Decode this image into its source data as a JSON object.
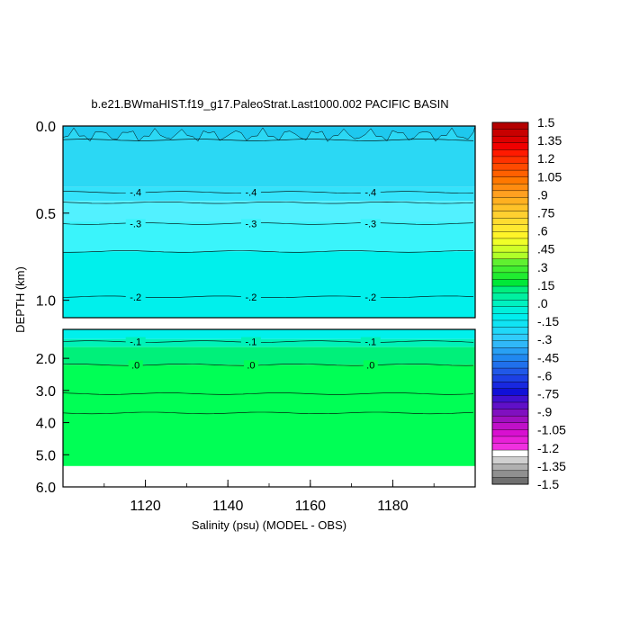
{
  "chart_data": {
    "type": "heatmap",
    "title": "b.e21.BWmaHIST.f19_g17.PaleoStrat.Last1000.002 PACIFIC BASIN",
    "xlabel": "Salinity (psu) (MODEL - OBS)",
    "ylabel": "DEPTH (km)",
    "xlim": [
      1100,
      1200
    ],
    "x_ticks": [
      1120,
      1140,
      1160,
      1180
    ],
    "upper_panel": {
      "ylim": [
        0.0,
        1.1
      ],
      "y_ticks": [
        "0.0",
        "0.5",
        "1.0"
      ]
    },
    "lower_panel": {
      "ylim": [
        1.1,
        6.0
      ],
      "y_ticks": [
        "2.0",
        "3.0",
        "4.0",
        "5.0",
        "6.0"
      ]
    },
    "bands": [
      {
        "top": 0.0,
        "bottom": 0.35,
        "value": -0.45,
        "color": "#2bd8f4"
      },
      {
        "top": 0.35,
        "bottom": 0.43,
        "value": -0.4,
        "color": "#35e3fb"
      },
      {
        "top": 0.43,
        "bottom": 0.55,
        "value": -0.35,
        "color": "#52f1ff"
      },
      {
        "top": 0.55,
        "bottom": 0.72,
        "value": -0.3,
        "color": "#3af4fb"
      },
      {
        "top": 0.72,
        "bottom": 1.4,
        "value": -0.2,
        "color": "#00f0ec"
      },
      {
        "top": 1.4,
        "bottom": 1.65,
        "value": -0.1,
        "color": "#00f2b8"
      },
      {
        "top": 1.65,
        "bottom": 2.2,
        "value": 0.0,
        "color": "#00f07a"
      },
      {
        "top": 2.2,
        "bottom": 5.35,
        "value": 0.05,
        "color": "#00ff55"
      }
    ],
    "contours": [
      {
        "depth": 0.08,
        "label": ""
      },
      {
        "depth": 0.38,
        "label": "-.4"
      },
      {
        "depth": 0.44,
        "label": ""
      },
      {
        "depth": 0.56,
        "label": "-.3"
      },
      {
        "depth": 0.72,
        "label": ""
      },
      {
        "depth": 0.98,
        "label": "-.2"
      },
      {
        "depth": 1.48,
        "label": "-.1"
      },
      {
        "depth": 2.2,
        "label": ".0"
      },
      {
        "depth": 3.1,
        "label": ""
      },
      {
        "depth": 3.7,
        "label": ""
      }
    ],
    "contour_label_x": [
      1115,
      1143,
      1172
    ],
    "missing_below_depth": 5.35,
    "colorbar": {
      "labels": [
        "1.5",
        "1.35",
        "1.2",
        "1.05",
        ".9",
        ".75",
        ".6",
        ".45",
        ".3",
        ".15",
        ".0",
        "-.15",
        "-.3",
        "-.45",
        "-.6",
        "-.75",
        "-.9",
        "-1.05",
        "-1.2",
        "-1.35",
        "-1.5"
      ],
      "colors": [
        "#b40000",
        "#c80000",
        "#dc0000",
        "#f00000",
        "#ff1a00",
        "#ff3200",
        "#ff4a00",
        "#ff6000",
        "#ff7800",
        "#ff8c10",
        "#ffa020",
        "#ffb020",
        "#ffc228",
        "#ffd030",
        "#ffdc30",
        "#ffe830",
        "#fff428",
        "#f0ff28",
        "#d0ff28",
        "#b0ff28",
        "#60f030",
        "#40ee30",
        "#20ec30",
        "#00e838",
        "#00ee80",
        "#00f0a0",
        "#00f2c0",
        "#00f0dc",
        "#00eeee",
        "#10e4f4",
        "#20d8f8",
        "#30ccfa",
        "#30b8f8",
        "#28a0f4",
        "#2088f0",
        "#2070ec",
        "#2058e8",
        "#1c40e4",
        "#1828e0",
        "#1010d8",
        "#4010d0",
        "#6010c8",
        "#8010c0",
        "#a010c0",
        "#c010c8",
        "#d810d0",
        "#e820d8",
        "#f030e0",
        "#ffffff",
        "#d0d0d0",
        "#b0b0b0",
        "#909090",
        "#707070"
      ]
    }
  }
}
